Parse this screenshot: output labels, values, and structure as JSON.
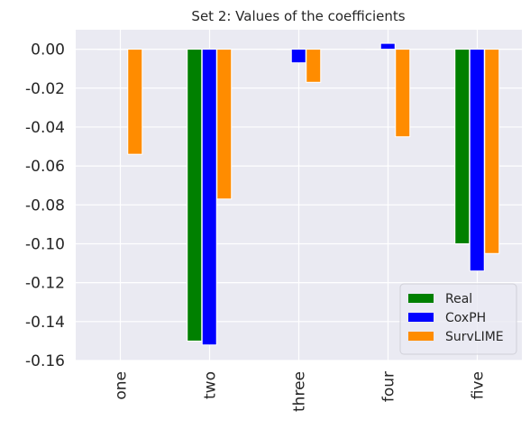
{
  "chart_data": {
    "type": "bar",
    "title": "Set 2: Values of the coefficients",
    "xlabel": "",
    "ylabel": "",
    "categories": [
      "one",
      "two",
      "three",
      "four",
      "five"
    ],
    "series": [
      {
        "name": "Real",
        "color": "#008000",
        "values": [
          0.0,
          -0.15,
          0.0,
          0.0,
          -0.1
        ]
      },
      {
        "name": "CoxPH",
        "color": "#0000ff",
        "values": [
          0.0,
          -0.152,
          -0.007,
          0.003,
          -0.114
        ]
      },
      {
        "name": "SurvLIME",
        "color": "#ff8c00",
        "values": [
          -0.054,
          -0.077,
          -0.017,
          -0.045,
          -0.105
        ]
      }
    ],
    "ylim": [
      -0.16,
      0.01
    ],
    "yticks": [
      0.0,
      -0.02,
      -0.04,
      -0.06,
      -0.08,
      -0.1,
      -0.12,
      -0.14,
      -0.16
    ],
    "ytick_labels": [
      "0.00",
      "-0.02",
      "-0.04",
      "-0.06",
      "-0.08",
      "-0.10",
      "-0.12",
      "-0.14",
      "-0.16"
    ],
    "grid": true,
    "legend_position": "lower-right",
    "background": "#eaeaf2"
  }
}
